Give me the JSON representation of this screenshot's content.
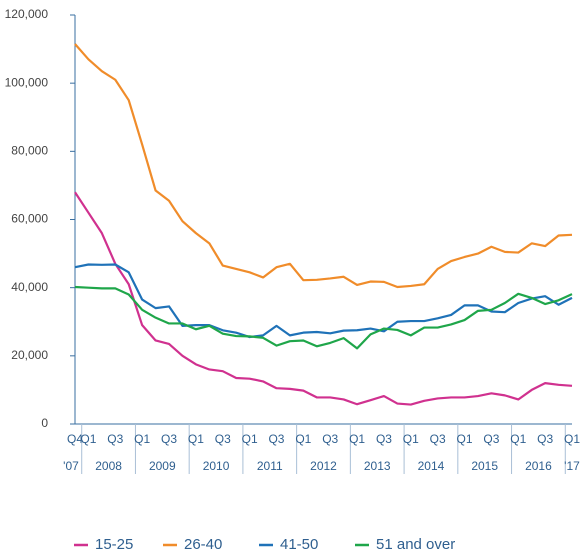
{
  "chart_data": {
    "type": "line",
    "groups": [
      {
        "label": "'07",
        "categories": [
          "Q4"
        ]
      },
      {
        "label": "2008",
        "categories": [
          "Q1",
          null,
          "Q3",
          null
        ]
      },
      {
        "label": "2009",
        "categories": [
          "Q1",
          null,
          "Q3",
          null
        ]
      },
      {
        "label": "2010",
        "categories": [
          "Q1",
          null,
          "Q3",
          null
        ]
      },
      {
        "label": "2011",
        "categories": [
          "Q1",
          null,
          "Q3",
          null
        ]
      },
      {
        "label": "2012",
        "categories": [
          "Q1",
          null,
          "Q3",
          null
        ]
      },
      {
        "label": "2013",
        "categories": [
          "Q1",
          null,
          "Q3",
          null
        ]
      },
      {
        "label": "2014",
        "categories": [
          "Q1",
          null,
          "Q3",
          null
        ]
      },
      {
        "label": "2015",
        "categories": [
          "Q1",
          null,
          "Q3",
          null
        ]
      },
      {
        "label": "2016",
        "categories": [
          "Q1",
          null,
          "Q3",
          null
        ]
      },
      {
        "label": "'17",
        "categories": [
          "Q1"
        ]
      }
    ],
    "series": [
      {
        "name": "15-25",
        "color": "#d0318f",
        "values": [
          68000,
          62000,
          56000,
          47000,
          41000,
          29000,
          24500,
          23500,
          20000,
          17500,
          16000,
          15500,
          13500,
          13300,
          12500,
          10500,
          10300,
          9800,
          7800,
          7800,
          7200,
          5800,
          7000,
          8200,
          6000,
          5700,
          6800,
          7500,
          7800,
          7800,
          8200,
          9000,
          8400,
          7200,
          10000,
          12000,
          11500,
          11200
        ]
      },
      {
        "name": "26-40",
        "color": "#f08c2a",
        "values": [
          111500,
          107000,
          103500,
          101000,
          95000,
          82000,
          68500,
          65500,
          59500,
          56000,
          53000,
          46500,
          45500,
          44500,
          43000,
          46000,
          47000,
          42200,
          42300,
          42700,
          43200,
          40800,
          41800,
          41700,
          40200,
          40500,
          41000,
          45500,
          47800,
          49000,
          50000,
          52000,
          50500,
          50300,
          53000,
          52200,
          55300,
          55500
        ]
      },
      {
        "name": "41-50",
        "color": "#1f72b8",
        "values": [
          46000,
          46800,
          46700,
          46800,
          44500,
          36500,
          34000,
          34500,
          28800,
          29000,
          29000,
          27500,
          26800,
          25500,
          26000,
          28800,
          26000,
          26800,
          27000,
          26600,
          27400,
          27500,
          28000,
          27200,
          30000,
          30200,
          30200,
          31000,
          32000,
          34800,
          34800,
          33000,
          32800,
          35500,
          36800,
          37500,
          35000,
          37000
        ]
      },
      {
        "name": "51 and over",
        "color": "#1fa64a",
        "values": [
          40200,
          40000,
          39800,
          39800,
          38000,
          33500,
          31200,
          29500,
          29500,
          27800,
          28800,
          26500,
          25800,
          25700,
          25300,
          23000,
          24300,
          24500,
          22800,
          23800,
          25200,
          22200,
          26300,
          28000,
          27600,
          26000,
          28300,
          28300,
          29200,
          30500,
          33200,
          33500,
          35500,
          38200,
          37000,
          35200,
          36300,
          38100
        ]
      }
    ],
    "ylim": [
      0,
      120000
    ],
    "yticks": [
      0,
      {
        "value": 20000,
        "label": "20,000"
      },
      {
        "value": 40000,
        "label": "40,000"
      },
      {
        "value": 60000,
        "label": "60,000"
      },
      {
        "value": 80000,
        "label": "80,000"
      },
      {
        "value": 100000,
        "label": "100,000"
      },
      {
        "value": 120000,
        "label": "120,000"
      }
    ],
    "grid": false
  }
}
